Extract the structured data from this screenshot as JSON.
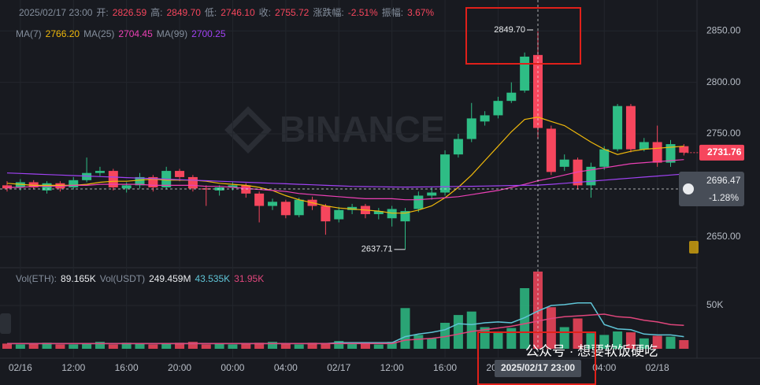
{
  "chart_data": {
    "type": "candlestick",
    "header": {
      "time": "2025/02/17 23:00",
      "fields": [
        {
          "label": "开:",
          "value": "2826.59"
        },
        {
          "label": "高:",
          "value": "2849.70"
        },
        {
          "label": "低:",
          "value": "2746.10"
        },
        {
          "label": "收:",
          "value": "2755.72"
        },
        {
          "label": "涨跌幅:",
          "value": "-2.51%"
        },
        {
          "label": "振幅:",
          "value": "3.67%"
        }
      ]
    },
    "categories": [
      null,
      "02/16",
      null,
      null,
      null,
      "12:00",
      null,
      null,
      null,
      "16:00",
      null,
      null,
      null,
      "20:00",
      null,
      null,
      null,
      "00:00",
      null,
      null,
      null,
      "04:00",
      null,
      null,
      null,
      "02/17",
      null,
      null,
      null,
      "12:00",
      null,
      null,
      null,
      "16:00",
      null,
      null,
      null,
      "20:00",
      null,
      null,
      null,
      null,
      null,
      null,
      null,
      "04:00",
      null,
      null,
      null,
      "02/18",
      null,
      null
    ],
    "candles": {
      "up_color": "#2ebd85",
      "down_color": "#f6465d",
      "open": [
        2700,
        2698,
        2703,
        2695,
        2702,
        2698,
        2705,
        2712,
        2714,
        2697,
        2700,
        2708,
        2698,
        2714,
        2708,
        2697,
        2695,
        2698,
        2700,
        2692,
        2680,
        2684,
        2671,
        2686,
        2680,
        2667,
        2676,
        2680,
        2672,
        2668,
        2665,
        2677,
        2690,
        2693,
        2730,
        2745,
        2762,
        2768,
        2782,
        2792,
        2826.59,
        2755,
        2718,
        2725,
        2700,
        2718,
        2735,
        2777,
        2735,
        2742,
        2722,
        2738
      ],
      "high": [
        2704,
        2706,
        2705,
        2704,
        2704,
        2708,
        2727,
        2718,
        2716,
        2703,
        2712,
        2710,
        2718,
        2716,
        2710,
        2700,
        2700,
        2703,
        2702,
        2694,
        2687,
        2686,
        2688,
        2689,
        2682,
        2679,
        2682,
        2682,
        2678,
        2680,
        2678,
        2694,
        2698,
        2734,
        2750,
        2780,
        2772,
        2786,
        2800,
        2829,
        2849.7,
        2758,
        2730,
        2727,
        2722,
        2738,
        2779,
        2779,
        2746,
        2758,
        2744,
        2740
      ],
      "low": [
        2694,
        2695,
        2696,
        2692,
        2694,
        2696,
        2703,
        2709,
        2695,
        2693,
        2697,
        2694,
        2696,
        2704,
        2694,
        2680,
        2690,
        2695,
        2688,
        2664,
        2676,
        2668,
        2669,
        2676,
        2652,
        2664,
        2672,
        2668,
        2667,
        2660,
        2637.71,
        2674,
        2686,
        2690,
        2727,
        2742,
        2758,
        2765,
        2780,
        2790,
        2746.1,
        2710,
        2714,
        2696,
        2688,
        2715,
        2733,
        2732,
        2733,
        2718,
        2718,
        2729
      ],
      "close": [
        2697,
        2703,
        2698,
        2702,
        2697,
        2705,
        2712,
        2714,
        2698,
        2700,
        2708,
        2698,
        2714,
        2708,
        2697,
        2696,
        2698,
        2700,
        2692,
        2680,
        2684,
        2671,
        2686,
        2680,
        2665,
        2676,
        2679,
        2672,
        2675,
        2677,
        2675,
        2690,
        2693,
        2730,
        2745,
        2765,
        2768,
        2782,
        2790,
        2825,
        2755.72,
        2713,
        2725,
        2700,
        2718,
        2735,
        2777,
        2735,
        2742,
        2722,
        2740,
        2731.76
      ]
    },
    "price_ma": [
      {
        "name": "MA(7)",
        "value_label": "2766.20",
        "color": "#f0b90b",
        "values": [
          2702,
          2701,
          2700,
          2700,
          2700,
          2700,
          2701,
          2703,
          2704,
          2704,
          2705,
          2706,
          2705,
          2705,
          2705,
          2704,
          2702,
          2701,
          2700,
          2698,
          2695,
          2690,
          2686,
          2683,
          2680,
          2678,
          2677,
          2676,
          2675,
          2673,
          2673,
          2676,
          2680,
          2688,
          2698,
          2710,
          2724,
          2738,
          2752,
          2764,
          2766.2,
          2762,
          2758,
          2750,
          2742,
          2735,
          2730,
          2733,
          2735,
          2736,
          2737,
          2738
        ]
      },
      {
        "name": "MA(25)",
        "value_label": "2704.45",
        "color": "#eb40b5",
        "values": [
          2698,
          2698,
          2699,
          2699,
          2699,
          2700,
          2700,
          2701,
          2701,
          2701,
          2701,
          2700,
          2700,
          2700,
          2700,
          2699,
          2699,
          2698,
          2697,
          2696,
          2695,
          2694,
          2692,
          2691,
          2690,
          2689,
          2688,
          2687,
          2687,
          2687,
          2686,
          2686,
          2687,
          2688,
          2689,
          2691,
          2693,
          2695,
          2698,
          2701,
          2704.45,
          2707,
          2710,
          2713,
          2715,
          2717,
          2719,
          2721,
          2722,
          2723,
          2724,
          2725
        ]
      },
      {
        "name": "MA(99)",
        "value_label": "2700.25",
        "color": "#a142f4",
        "values": [
          2712,
          2711.5,
          2711,
          2710.5,
          2710,
          2709.5,
          2709,
          2708.5,
          2708,
          2707.5,
          2707,
          2706.5,
          2706,
          2705.5,
          2705,
          2704.5,
          2704,
          2703.5,
          2703,
          2702.5,
          2702,
          2701.5,
          2701,
          2700.5,
          2700,
          2699.5,
          2699,
          2698.8,
          2698.6,
          2698.4,
          2698.3,
          2698.4,
          2698.5,
          2698.7,
          2698.9,
          2699.1,
          2699.3,
          2699.5,
          2699.8,
          2700,
          2700.25,
          2701,
          2702,
          2703,
          2704,
          2705,
          2706,
          2707,
          2708,
          2709,
          2710,
          2711
        ]
      }
    ],
    "ylim": [
      2620,
      2880
    ],
    "yticks": [
      {
        "value": 2650,
        "label": "2650.00"
      },
      {
        "value": 2750,
        "label": "2750.00"
      },
      {
        "value": 2800,
        "label": "2800.00"
      },
      {
        "value": 2850,
        "label": "2850.00"
      }
    ],
    "annotations": {
      "high": {
        "value": 2849.7,
        "label": "2849.70"
      },
      "low": 2637.71
    },
    "crosshair": {
      "time": "2025/02/17 23:00",
      "price": 2696.47,
      "change": "-1.28%"
    },
    "volume": {
      "name": "Vol(ETH):",
      "value_label": "89.165K",
      "quote_name": "Vol(USDT)",
      "quote_value": "249.459M",
      "ylim": [
        0,
        100
      ],
      "yticks": [
        {
          "value": 50,
          "label": "50K"
        }
      ],
      "values": [
        6,
        5,
        6,
        7,
        5,
        5,
        6,
        8,
        5,
        7,
        6,
        5,
        6,
        7,
        8,
        5,
        6,
        5,
        6,
        7,
        8,
        6,
        5,
        7,
        6,
        9,
        6,
        7,
        5,
        8,
        47,
        16,
        12,
        30,
        39,
        43,
        25,
        20,
        24,
        70,
        89.165,
        48,
        25,
        35,
        18,
        16,
        20,
        19,
        12,
        15,
        14,
        10
      ],
      "ma": [
        {
          "value_label": "43.535K",
          "color": "#5fc4d6",
          "values": [
            6,
            6,
            6,
            6,
            6,
            6,
            6,
            6,
            6,
            6,
            6,
            6,
            6,
            6,
            6,
            6,
            6,
            6,
            6,
            6,
            6,
            6,
            6,
            6,
            6,
            7,
            7,
            7,
            7,
            7,
            14,
            17,
            19,
            22,
            29,
            28,
            30,
            31,
            30,
            36,
            43.535,
            50,
            51,
            53,
            53,
            28,
            23,
            22,
            17,
            16,
            16,
            14
          ]
        },
        {
          "value_label": "31.95K",
          "color": "#e0467c",
          "values": [
            6,
            6,
            6,
            6,
            6,
            6,
            6,
            6,
            6,
            6,
            6,
            6,
            6,
            6,
            6,
            6,
            6,
            6,
            6,
            6,
            6,
            6,
            6,
            6,
            6,
            6,
            6,
            6,
            6,
            6,
            10,
            11,
            12,
            14,
            17,
            20,
            22,
            24,
            26,
            29,
            31.95,
            35,
            37,
            38,
            39,
            40,
            37,
            36,
            33,
            31,
            28,
            27
          ]
        }
      ]
    },
    "watermark": "BINANCE",
    "credit": "公众号 · 想要软饭硬吃"
  }
}
